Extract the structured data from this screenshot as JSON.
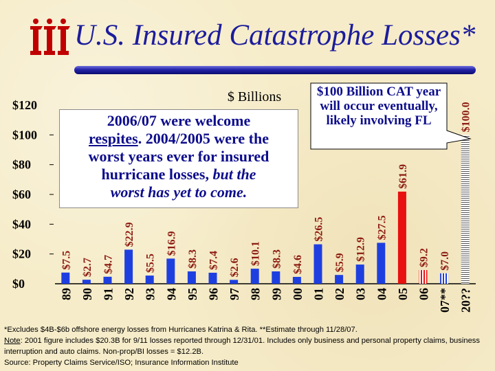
{
  "logo": {
    "icon": "iii-logo",
    "color": "#c00000"
  },
  "title": "U.S. Insured Catastrophe Losses*",
  "chart_data": {
    "type": "bar",
    "title": "U.S. Insured Catastrophe Losses*",
    "ylabel": "$ Billions",
    "ylim": [
      0,
      120
    ],
    "yticks": [
      "$0",
      "$20",
      "$40",
      "$60",
      "$80",
      "$100",
      "$120"
    ],
    "grid": false,
    "categories": [
      "89",
      "90",
      "91",
      "92",
      "93",
      "94",
      "95",
      "96",
      "97",
      "98",
      "99",
      "00",
      "01",
      "02",
      "03",
      "04",
      "05",
      "06",
      "07**",
      "20??"
    ],
    "values": [
      7.5,
      2.7,
      4.7,
      22.9,
      5.5,
      16.9,
      8.3,
      7.4,
      2.6,
      10.1,
      8.3,
      4.6,
      26.5,
      5.9,
      12.9,
      27.5,
      61.9,
      9.2,
      7.0,
      100.0
    ],
    "labels": [
      "$7.5",
      "$2.7",
      "$4.7",
      "$22.9",
      "$5.5",
      "$16.9",
      "$8.3",
      "$7.4",
      "$2.6",
      "$10.1",
      "$8.3",
      "$4.6",
      "$26.5",
      "$5.9",
      "$12.9",
      "$27.5",
      "$61.9",
      "$9.2",
      "$7.0",
      "$100.0"
    ],
    "bar_styles": [
      "blue",
      "blue",
      "blue",
      "blue",
      "blue",
      "blue",
      "blue",
      "blue",
      "blue",
      "blue",
      "blue",
      "blue",
      "blue",
      "blue",
      "blue",
      "blue",
      "red",
      "red-white-striped",
      "blue-white-striped",
      "hatched"
    ],
    "colors": {
      "blue": "#1e3fe0",
      "red": "#e81010",
      "label": "#8c1a10",
      "axis": "#000000"
    }
  },
  "annotation": {
    "line1": "2006/07 were welcome",
    "respites": "respites",
    "line2_rest": ". 2004/2005 were the",
    "line3": "worst years ever for insured",
    "line4_normal": "hurricane losses, ",
    "line4_italic": "but the",
    "line5": "worst has yet to come."
  },
  "callout": {
    "text": "$100 Billion CAT year will occur eventually, likely involving FL"
  },
  "footnote": {
    "line1": "*Excludes $4B-$6b offshore energy losses from Hurricanes Katrina & Rita. **Estimate through 11/28/07.",
    "note_label": "Note",
    "line2_rest": ": 2001 figure includes $20.3B for 9/11 losses reported through 12/31/01. Includes only business and personal property claims, business interruption and auto claims. Non-prop/BI losses = $12.2B.",
    "source": "Source: Property Claims Service/ISO; Insurance Information Institute"
  }
}
